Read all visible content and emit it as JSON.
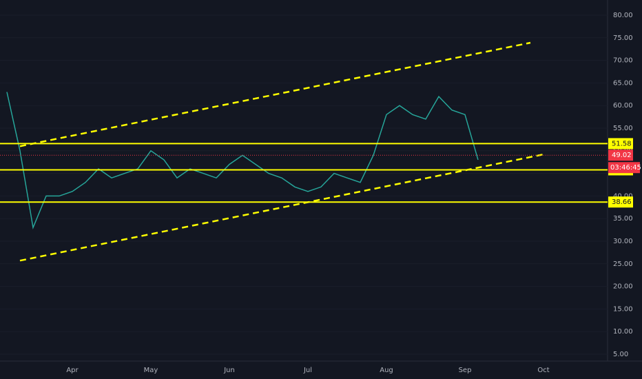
{
  "chart_data": {
    "type": "line",
    "categories": [
      null,
      null,
      null,
      null,
      null,
      "Apr",
      null,
      null,
      null,
      null,
      null,
      "May",
      null,
      null,
      null,
      null,
      null,
      "Jun",
      null,
      null,
      null,
      null,
      null,
      "Jul",
      null,
      null,
      null,
      null,
      null,
      "Aug",
      null,
      null,
      null,
      null,
      null,
      "Sep",
      null,
      null,
      null,
      null,
      null,
      "Oct"
    ],
    "series": [
      {
        "color": "#26a69a",
        "values": [
          63,
          50,
          33,
          40,
          40,
          41,
          43,
          46,
          44,
          45,
          46,
          50,
          48,
          44,
          46,
          45,
          44,
          47,
          49,
          47,
          45,
          44,
          42,
          41,
          42,
          45,
          44,
          43,
          49,
          58,
          60,
          58,
          57,
          62,
          59,
          58,
          48,
          null,
          null,
          null,
          null,
          null
        ]
      }
    ],
    "ylim": [
      3,
      82
    ],
    "yticks": [
      {
        "value": 5,
        "label": "5.00"
      },
      {
        "value": 10,
        "label": "10.00"
      },
      {
        "value": 15,
        "label": "15.00"
      },
      {
        "value": 20,
        "label": "20.00"
      },
      {
        "value": 25,
        "label": "25.00"
      },
      {
        "value": 30,
        "label": "30.00"
      },
      {
        "value": 35,
        "label": "35.00"
      },
      {
        "value": 40,
        "label": "40.00"
      },
      {
        "value": 45,
        "label": "45.00"
      },
      {
        "value": 50,
        "label": "50.00"
      },
      {
        "value": 55,
        "label": "55.00"
      },
      {
        "value": 60,
        "label": "60.00"
      },
      {
        "value": 65,
        "label": "65.00"
      },
      {
        "value": 70,
        "label": "70.00"
      },
      {
        "value": 75,
        "label": "75.00"
      },
      {
        "value": 80,
        "label": "80.00"
      }
    ],
    "levels": [
      {
        "value": 51.58,
        "color": "#ffff00"
      },
      {
        "value": 45.78,
        "color": "#ffff00"
      },
      {
        "value": 38.66,
        "color": "#ffff00"
      }
    ],
    "last_price": {
      "value": 49.02,
      "color": "#f23645",
      "countdown": "03:46:45"
    },
    "trendlines": [
      {
        "color": "#ffff00",
        "values": [
          51.0,
          73.9
        ]
      },
      {
        "color": "#ffff00",
        "values": [
          25.7,
          49.2
        ]
      }
    ]
  }
}
